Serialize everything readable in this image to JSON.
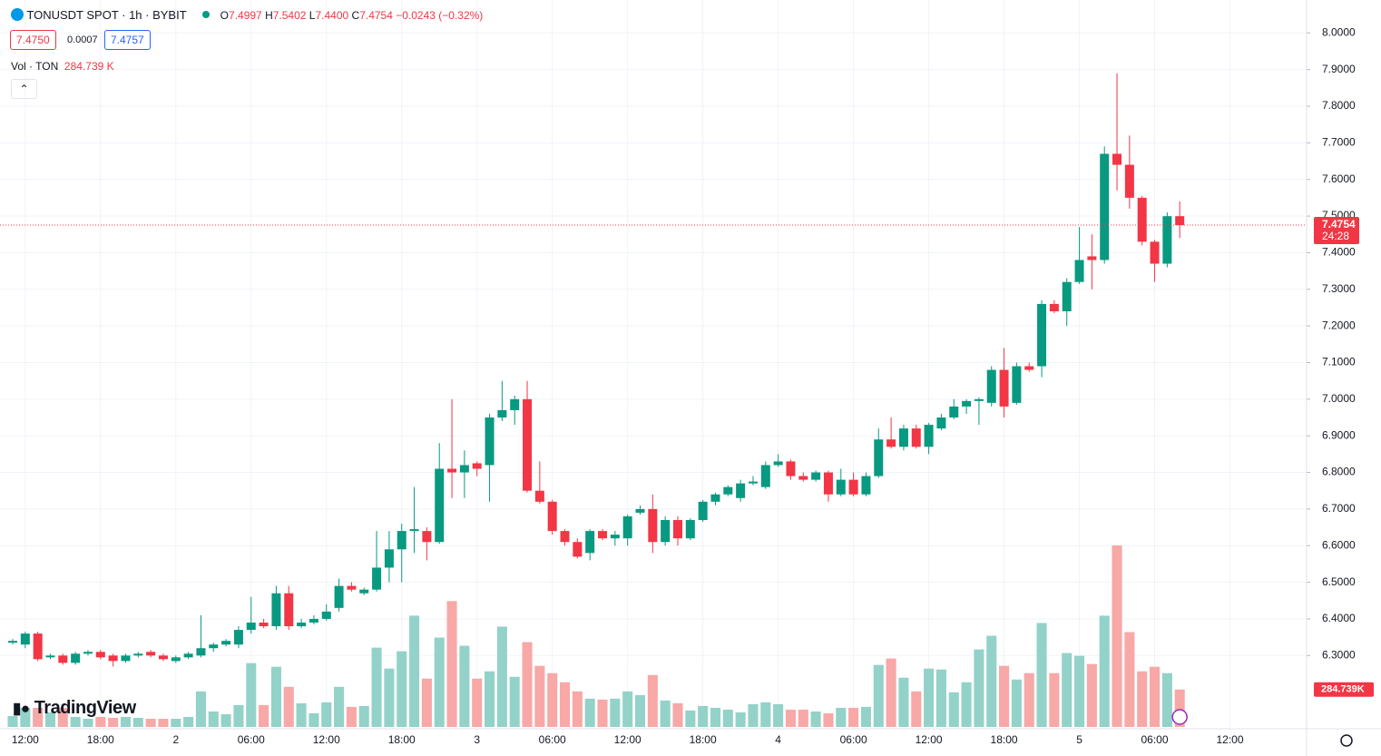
{
  "header": {
    "symbol": "TONUSDT SPOT · 1h · BYBIT",
    "o_label": "O",
    "o": "7.4997",
    "h_label": "H",
    "h": "7.5402",
    "l_label": "L",
    "l": "7.4400",
    "c_label": "C",
    "c": "7.4754",
    "change": "−0.0243 (−0.32%)",
    "bid": "7.4750",
    "spread": "0.0007",
    "ask": "7.4757",
    "vol_title": "Vol · TON",
    "vol_value": "284.739 K",
    "logo": "TradingView"
  },
  "chart_data": {
    "type": "candlestick",
    "categories": [
      null,
      "12:00",
      null,
      null,
      null,
      null,
      null,
      "18:00",
      null,
      null,
      null,
      null,
      null,
      "2",
      null,
      null,
      null,
      null,
      null,
      "06:00",
      null,
      null,
      null,
      null,
      null,
      "12:00",
      null,
      null,
      null,
      null,
      null,
      "18:00",
      null,
      null,
      null,
      null,
      null,
      "3",
      null,
      null,
      null,
      null,
      null,
      "06:00",
      null,
      null,
      null,
      null,
      null,
      "12:00",
      null,
      null,
      null,
      null,
      null,
      "18:00",
      null,
      null,
      null,
      null,
      null,
      "4",
      null,
      null,
      null,
      null,
      null,
      "06:00",
      null,
      null,
      null,
      null,
      null,
      "12:00",
      null,
      null,
      null,
      null,
      null,
      "18:00",
      null,
      null,
      null,
      null,
      null,
      "5",
      null,
      null,
      null,
      null,
      null,
      "06:00",
      null,
      null,
      null,
      null,
      null,
      "12:00"
    ],
    "open": [
      6.335,
      6.33,
      6.36,
      6.295,
      6.3,
      6.28,
      6.305,
      6.31,
      6.3,
      6.285,
      6.3,
      6.31,
      6.3,
      6.285,
      6.295,
      6.3,
      6.32,
      6.33,
      6.33,
      6.37,
      6.39,
      6.38,
      6.47,
      6.38,
      6.39,
      6.4,
      6.43,
      6.49,
      6.47,
      6.48,
      6.54,
      6.59,
      6.64,
      6.64,
      6.61,
      6.81,
      6.8,
      6.825,
      6.82,
      6.95,
      6.97,
      7.0,
      6.75,
      6.72,
      6.64,
      6.61,
      6.58,
      6.64,
      6.62,
      6.62,
      6.69,
      6.7,
      6.61,
      6.67,
      6.62,
      6.67,
      6.72,
      6.74,
      6.73,
      6.77,
      6.76,
      6.82,
      6.83,
      6.79,
      6.78,
      6.8,
      6.74,
      6.78,
      6.74,
      6.79,
      6.89,
      6.87,
      6.92,
      6.87,
      6.92,
      6.95,
      6.98,
      6.995,
      6.99,
      7.08,
      6.99,
      7.09,
      7.09,
      7.26,
      7.24,
      7.32,
      7.39,
      7.38,
      7.67,
      7.64,
      7.55,
      7.43,
      7.37,
      7.4997,
      null,
      null,
      null,
      null
    ],
    "high": [
      6.345,
      6.365,
      6.365,
      6.305,
      6.305,
      6.31,
      6.315,
      6.315,
      6.305,
      6.305,
      6.31,
      6.315,
      6.305,
      6.3,
      6.31,
      6.41,
      6.335,
      6.345,
      6.38,
      6.46,
      6.4,
      6.49,
      6.49,
      6.4,
      6.41,
      6.44,
      6.51,
      6.5,
      6.485,
      6.64,
      6.64,
      6.66,
      6.76,
      6.65,
      6.88,
      7.0,
      6.86,
      6.83,
      6.96,
      7.05,
      7.01,
      7.05,
      6.83,
      6.725,
      6.645,
      6.62,
      6.645,
      6.645,
      6.64,
      6.685,
      6.71,
      6.74,
      6.68,
      6.68,
      6.675,
      6.725,
      6.745,
      6.765,
      6.78,
      6.79,
      6.83,
      6.85,
      6.835,
      6.8,
      6.805,
      6.805,
      6.81,
      6.8,
      6.8,
      6.92,
      6.95,
      6.93,
      6.93,
      6.935,
      6.96,
      7.0,
      7.0,
      7.005,
      7.09,
      7.14,
      7.1,
      7.1,
      7.27,
      7.27,
      7.33,
      7.47,
      7.45,
      7.69,
      7.89,
      7.72,
      7.555,
      7.435,
      7.51,
      7.5402,
      null,
      null,
      null,
      null
    ],
    "low": [
      6.33,
      6.32,
      6.285,
      6.29,
      6.275,
      6.275,
      6.3,
      6.29,
      6.27,
      6.28,
      6.295,
      6.295,
      6.285,
      6.28,
      6.29,
      6.295,
      6.31,
      6.325,
      6.32,
      6.36,
      6.375,
      6.37,
      6.37,
      6.375,
      6.385,
      6.395,
      6.42,
      6.475,
      6.465,
      6.475,
      6.5,
      6.5,
      6.58,
      6.56,
      6.605,
      6.73,
      6.73,
      6.79,
      6.72,
      6.94,
      6.93,
      6.745,
      6.715,
      6.63,
      6.6,
      6.565,
      6.56,
      6.615,
      6.6,
      6.6,
      6.685,
      6.58,
      6.6,
      6.6,
      6.615,
      6.665,
      6.71,
      6.735,
      6.72,
      6.765,
      6.755,
      6.815,
      6.78,
      6.775,
      6.775,
      6.72,
      6.735,
      6.735,
      6.735,
      6.785,
      6.865,
      6.86,
      6.865,
      6.85,
      6.915,
      6.945,
      6.96,
      6.93,
      6.98,
      6.95,
      6.985,
      7.075,
      7.06,
      7.235,
      7.2,
      7.315,
      7.3,
      7.37,
      7.57,
      7.52,
      7.42,
      7.32,
      7.36,
      7.44,
      null,
      null,
      null,
      null
    ],
    "close": [
      6.34,
      6.36,
      6.29,
      6.3,
      6.28,
      6.305,
      6.31,
      6.295,
      6.285,
      6.3,
      6.305,
      6.3,
      6.29,
      6.295,
      6.305,
      6.32,
      6.33,
      6.34,
      6.37,
      6.39,
      6.38,
      6.47,
      6.38,
      6.39,
      6.4,
      6.42,
      6.49,
      6.48,
      6.48,
      6.54,
      6.59,
      6.64,
      6.645,
      6.61,
      6.81,
      6.8,
      6.82,
      6.81,
      6.95,
      6.97,
      7.0,
      6.75,
      6.72,
      6.64,
      6.61,
      6.57,
      6.64,
      6.62,
      6.63,
      6.68,
      6.7,
      6.61,
      6.67,
      6.62,
      6.67,
      6.72,
      6.74,
      6.76,
      6.77,
      6.775,
      6.82,
      6.83,
      6.79,
      6.78,
      6.8,
      6.74,
      6.78,
      6.74,
      6.79,
      6.89,
      6.87,
      6.92,
      6.87,
      6.93,
      6.95,
      6.98,
      6.995,
      7.0,
      7.08,
      6.98,
      7.09,
      7.08,
      7.26,
      7.24,
      7.32,
      7.38,
      7.38,
      7.67,
      7.64,
      7.55,
      7.43,
      7.37,
      7.4997,
      7.4754,
      null,
      null,
      null,
      null
    ],
    "volume": [
      83300,
      145800,
      145800,
      111100,
      145800,
      76400,
      62500,
      76400,
      69400,
      76400,
      69400,
      62500,
      62500,
      62500,
      76400,
      270800,
      118000,
      97200,
      166700,
      486100,
      166700,
      458300,
      305500,
      180500,
      104200,
      187500,
      305500,
      152800,
      159700,
      604100,
      444400,
      576400,
      847200,
      368000,
      680500,
      958300,
      618000,
      368000,
      423600,
      763800,
      381900,
      645800,
      465200,
      409700,
      340300,
      270800,
      215300,
      208300,
      215300,
      270800,
      243000,
      395800,
      201400,
      180500,
      125000,
      159700,
      145800,
      131900,
      111100,
      173600,
      187500,
      173600,
      131900,
      131900,
      118000,
      104200,
      145800,
      145800,
      152800,
      472200,
      520800,
      375000,
      270800,
      444400,
      437500,
      263900,
      340300,
      590200,
      694400,
      465200,
      361100,
      409700,
      791600,
      409700,
      562500,
      541600,
      479100,
      847200,
      1381900,
      722200,
      423600,
      458300,
      409700,
      284739,
      null,
      null,
      null,
      null
    ],
    "volume_label": "284.739K",
    "countdown": "24:28",
    "up_color": "#089981",
    "down_color": "#f23645",
    "up_volume_color": "#93d2c8",
    "down_volume_color": "#f7a8a7",
    "ylim": [
      6.1,
      8.09
    ],
    "yticks": [
      {
        "value": 6.3,
        "label": "6.3000"
      },
      {
        "value": 6.4,
        "label": "6.4000"
      },
      {
        "value": 6.5,
        "label": "6.5000"
      },
      {
        "value": 6.6,
        "label": "6.6000"
      },
      {
        "value": 6.7,
        "label": "6.7000"
      },
      {
        "value": 6.8,
        "label": "6.8000"
      },
      {
        "value": 6.9,
        "label": "6.9000"
      },
      {
        "value": 7.0,
        "label": "7.0000"
      },
      {
        "value": 7.1,
        "label": "7.1000"
      },
      {
        "value": 7.2,
        "label": "7.2000"
      },
      {
        "value": 7.3,
        "label": "7.3000"
      },
      {
        "value": 7.4,
        "label": "7.4000"
      },
      {
        "value": 7.5,
        "label": "7.5000"
      },
      {
        "value": 7.6,
        "label": "7.6000"
      },
      {
        "value": 7.7,
        "label": "7.7000"
      },
      {
        "value": 7.8,
        "label": "7.8000"
      },
      {
        "value": 7.9,
        "label": "7.9000"
      },
      {
        "value": 8.0,
        "label": "8.0000"
      }
    ],
    "grid": true
  }
}
